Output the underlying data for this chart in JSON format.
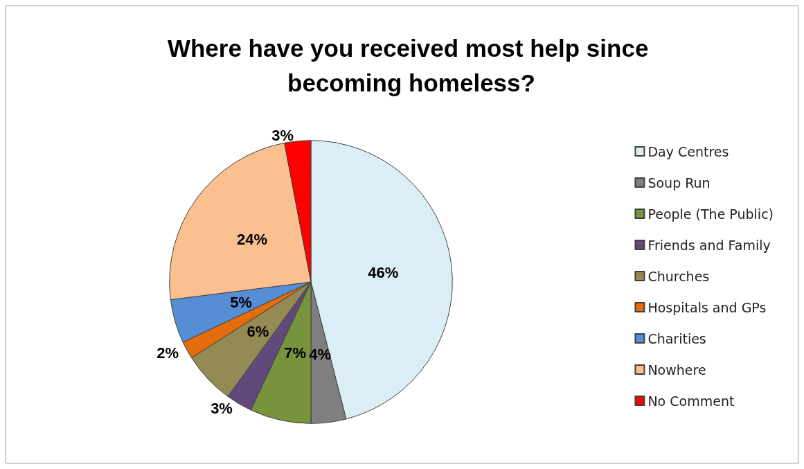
{
  "chart_data": {
    "type": "pie",
    "title": "Where have you received most help since becoming homeless?",
    "categories": [
      "Day Centres",
      "Soup Run",
      "People (The Public)",
      "Friends and Family",
      "Churches",
      "Hospitals and GPs",
      "Charities",
      "Nowhere",
      "No Comment"
    ],
    "values": [
      46,
      4,
      7,
      3,
      6,
      2,
      5,
      24,
      3
    ],
    "colors": [
      "#dbeef6",
      "#7f7f7f",
      "#77933c",
      "#604a7b",
      "#948a54",
      "#e46c0a",
      "#558ed5",
      "#fac090",
      "#ff0000"
    ],
    "value_labels": [
      "46%",
      "4%",
      "7%",
      "3%",
      "6%",
      "2%",
      "5%",
      "24%",
      "3%"
    ],
    "legend": "right"
  }
}
